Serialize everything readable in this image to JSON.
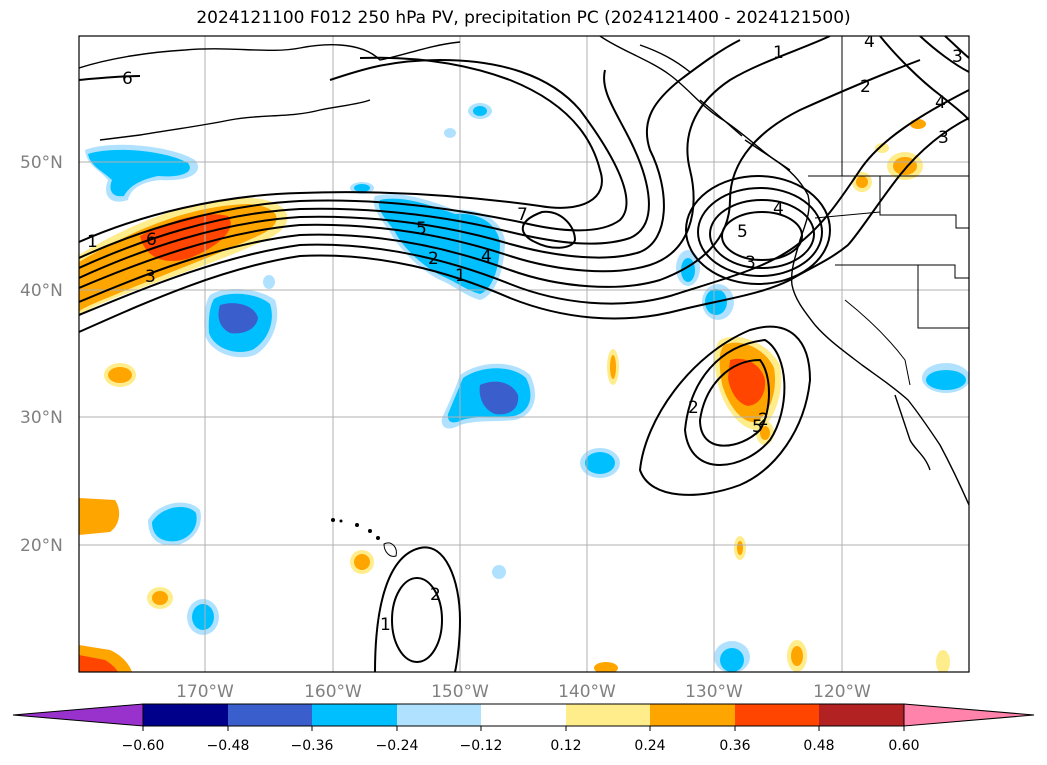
{
  "title": "2024121100 F012 250 hPa PV, precipitation PC (2024121400 - 2024121500)",
  "map": {
    "lat_labels": [
      "50°N",
      "40°N",
      "30°N",
      "20°N"
    ],
    "lon_labels": [
      "170°W",
      "160°W",
      "150°W",
      "140°W",
      "130°W",
      "120°W"
    ],
    "gridlines": true
  },
  "contour_labels": [
    "1",
    "2",
    "3",
    "5",
    "6",
    "7",
    "2",
    "1",
    "4",
    "5",
    "4",
    "3",
    "5",
    "1",
    "2",
    "4",
    "3",
    "2",
    "3",
    "1",
    "2",
    "6",
    "4"
  ],
  "colorbar": {
    "ticks": [
      "−0.60",
      "−0.48",
      "−0.36",
      "−0.24",
      "−0.12",
      "0.12",
      "0.24",
      "0.36",
      "0.48",
      "0.60"
    ],
    "colors": [
      "#9932cc",
      "#00008b",
      "#3a5fcd",
      "#00bfff",
      "#b0e2ff",
      "#ffffff",
      "#ffec8b",
      "#ffa500",
      "#ff4500",
      "#b22222",
      "#ff83aa"
    ],
    "extend": "both"
  }
}
